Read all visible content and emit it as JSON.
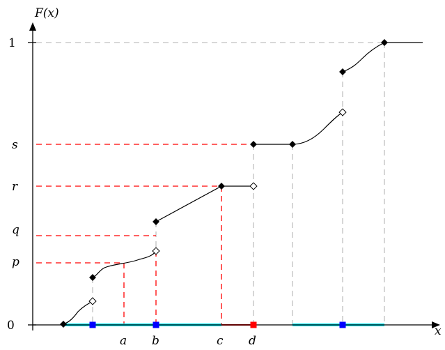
{
  "diagram": {
    "y_axis_label": "F(x)",
    "x_axis_label": "x",
    "y_tick_labels": {
      "zero": "0",
      "one": "1",
      "s": "s",
      "r": "r",
      "q": "q",
      "p": "p"
    },
    "x_tick_labels": {
      "a": "a",
      "b": "b",
      "c": "c",
      "d": "d"
    },
    "colors": {
      "curve": "#000000",
      "projection_red": "#ff0000",
      "projection_gray": "#c0c0c0",
      "support_interval": "#00e5ee",
      "jump_point": "#0000ff",
      "highlight_point": "#ff0000"
    }
  }
}
